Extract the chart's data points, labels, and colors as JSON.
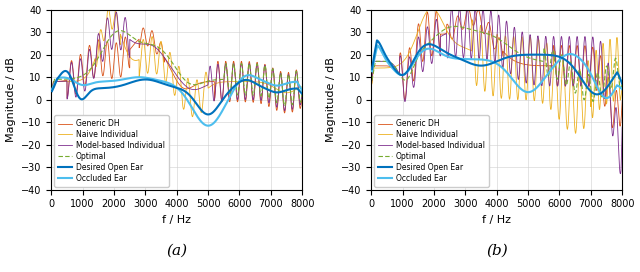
{
  "xlim": [
    0,
    8000
  ],
  "ylim": [
    -40,
    40
  ],
  "xlabel": "f / Hz",
  "ylabel": "Magnitude / dB",
  "xticks": [
    0,
    1000,
    2000,
    3000,
    4000,
    5000,
    6000,
    7000,
    8000
  ],
  "xticklabels": [
    "0",
    "1000",
    "2000",
    "3000",
    "4000",
    "5000",
    "6000",
    "7000",
    "8000"
  ],
  "yticks": [
    -40,
    -30,
    -20,
    -10,
    0,
    10,
    20,
    30,
    40
  ],
  "colors": {
    "desired_open_ear": "#0072BD",
    "generic_dh": "#D95319",
    "naive_individual": "#EDB120",
    "model_based": "#7E2F8E",
    "optimal": "#77AC30",
    "occluded_ear": "#4DBEEE"
  },
  "legend_labels": [
    "Desired Open Ear",
    "Generic DH",
    "Naive Individual",
    "Model-based Individual",
    "Optimal",
    "Occluded Ear"
  ],
  "subplot_labels": [
    "(a)",
    "(b)"
  ],
  "figsize": [
    6.4,
    2.72
  ],
  "dpi": 100
}
